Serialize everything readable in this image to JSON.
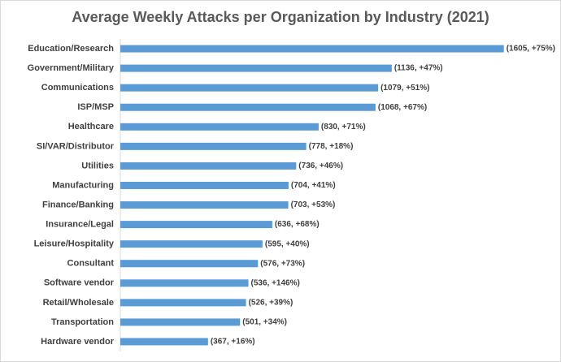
{
  "chart_data": {
    "type": "bar",
    "orientation": "horizontal",
    "title": "Average Weekly Attacks per Organization by Industry (2021)",
    "categories": [
      "Education/Research",
      "Government/Military",
      "Communications",
      "ISP/MSP",
      "Healthcare",
      "SI/VAR/Distributor",
      "Utilities",
      "Manufacturing",
      "Finance/Banking",
      "Insurance/Legal",
      "Leisure/Hospitality",
      "Consultant",
      "Software vendor",
      "Retail/Wholesale",
      "Transportation",
      "Hardware vendor"
    ],
    "values": [
      1605,
      1136,
      1079,
      1068,
      830,
      778,
      736,
      704,
      703,
      636,
      595,
      576,
      536,
      526,
      501,
      367
    ],
    "value_labels": [
      "(1605, +75%)",
      "(1136, +47%)",
      "(1079, +51%)",
      "(1068, +67%)",
      "(830, +71%)",
      "(778, +18%)",
      "(736, +46%)",
      "(704, +41%)",
      "(703, +53%)",
      "(636, +68%)",
      "(595, +40%)",
      "(576, +73%)",
      "(536, +146%)",
      "(526, +39%)",
      "(501, +34%)",
      "(367, +16%)"
    ],
    "color": "#5b9bd5",
    "xlim": [
      0,
      1800
    ]
  }
}
